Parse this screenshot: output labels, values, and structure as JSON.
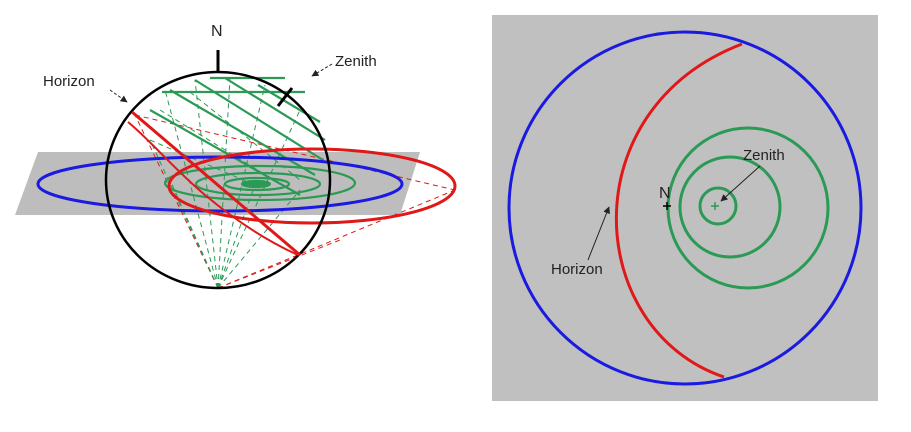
{
  "colors": {
    "horizon": "#e01818",
    "equator": "#1a1ae0",
    "paths": "#2a9a55",
    "sphere": "#000000",
    "plane": "#bdbdbd",
    "panel": "#c0c0c0"
  },
  "left_panel": {
    "north_label": "N",
    "horizon_label": "Horizon",
    "zenith_label": "Zenith"
  },
  "right_panel": {
    "north_label": "N",
    "horizon_label": "Horizon",
    "zenith_label": "Zenith"
  }
}
